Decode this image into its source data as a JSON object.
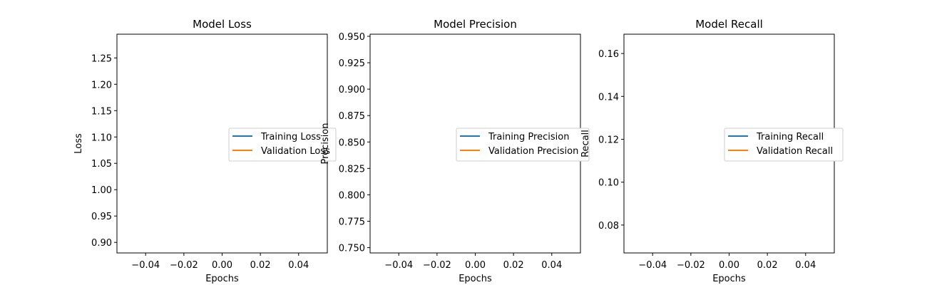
{
  "chart_data": [
    {
      "type": "line",
      "title": "Model Loss",
      "xlabel": "Epochs",
      "ylabel": "Loss",
      "xlim": [
        -0.055,
        0.055
      ],
      "ylim": [
        0.88,
        1.295
      ],
      "xticks": [
        -0.04,
        -0.02,
        0.0,
        0.02,
        0.04
      ],
      "xtick_labels": [
        "−0.04",
        "−0.02",
        "0.00",
        "0.02",
        "0.04"
      ],
      "yticks": [
        0.9,
        0.95,
        1.0,
        1.05,
        1.1,
        1.15,
        1.2,
        1.25
      ],
      "ytick_labels": [
        "0.90",
        "0.95",
        "1.00",
        "1.05",
        "1.10",
        "1.15",
        "1.20",
        "1.25"
      ],
      "legend_position": "center-right",
      "grid": false,
      "series": [
        {
          "name": "Training Loss",
          "color": "#1f77b4",
          "x": [],
          "y": []
        },
        {
          "name": "Validation Loss",
          "color": "#ff7f0e",
          "x": [],
          "y": []
        }
      ]
    },
    {
      "type": "line",
      "title": "Model Precision",
      "xlabel": "Epochs",
      "ylabel": "Precision",
      "xlim": [
        -0.055,
        0.055
      ],
      "ylim": [
        0.745,
        0.952
      ],
      "xticks": [
        -0.04,
        -0.02,
        0.0,
        0.02,
        0.04
      ],
      "xtick_labels": [
        "−0.04",
        "−0.02",
        "0.00",
        "0.02",
        "0.04"
      ],
      "yticks": [
        0.75,
        0.775,
        0.8,
        0.825,
        0.85,
        0.875,
        0.9,
        0.925,
        0.95
      ],
      "ytick_labels": [
        "0.750",
        "0.775",
        "0.800",
        "0.825",
        "0.850",
        "0.875",
        "0.900",
        "0.925",
        "0.950"
      ],
      "legend_position": "center-right",
      "grid": false,
      "series": [
        {
          "name": "Training Precision",
          "color": "#1f77b4",
          "x": [],
          "y": []
        },
        {
          "name": "Validation Precision",
          "color": "#ff7f0e",
          "x": [],
          "y": []
        }
      ]
    },
    {
      "type": "line",
      "title": "Model Recall",
      "xlabel": "Epochs",
      "ylabel": "Recall",
      "xlim": [
        -0.055,
        0.055
      ],
      "ylim": [
        0.067,
        0.169
      ],
      "xticks": [
        -0.04,
        -0.02,
        0.0,
        0.02,
        0.04
      ],
      "xtick_labels": [
        "−0.04",
        "−0.02",
        "0.00",
        "0.02",
        "0.04"
      ],
      "yticks": [
        0.08,
        0.1,
        0.12,
        0.14,
        0.16
      ],
      "ytick_labels": [
        "0.08",
        "0.10",
        "0.12",
        "0.14",
        "0.16"
      ],
      "legend_position": "center-right",
      "grid": false,
      "series": [
        {
          "name": "Training Recall",
          "color": "#1f77b4",
          "x": [],
          "y": []
        },
        {
          "name": "Validation Recall",
          "color": "#ff7f0e",
          "x": [],
          "y": []
        }
      ]
    }
  ]
}
